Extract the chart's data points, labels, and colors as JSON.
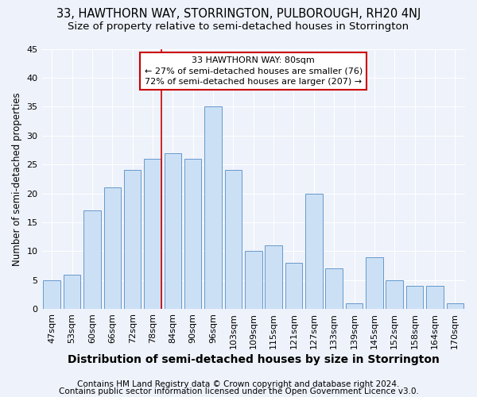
{
  "title": "33, HAWTHORN WAY, STORRINGTON, PULBOROUGH, RH20 4NJ",
  "subtitle": "Size of property relative to semi-detached houses in Storrington",
  "xlabel": "Distribution of semi-detached houses by size in Storrington",
  "ylabel": "Number of semi-detached properties",
  "categories": [
    "47sqm",
    "53sqm",
    "60sqm",
    "66sqm",
    "72sqm",
    "78sqm",
    "84sqm",
    "90sqm",
    "96sqm",
    "103sqm",
    "109sqm",
    "115sqm",
    "121sqm",
    "127sqm",
    "133sqm",
    "139sqm",
    "145sqm",
    "152sqm",
    "158sqm",
    "164sqm",
    "170sqm"
  ],
  "values": [
    5,
    6,
    17,
    21,
    24,
    26,
    27,
    26,
    35,
    24,
    10,
    11,
    8,
    20,
    7,
    1,
    9,
    5,
    4,
    4,
    1
  ],
  "bar_color": "#cce0f5",
  "bar_edge_color": "#6699cc",
  "ylim": [
    0,
    45
  ],
  "yticks": [
    0,
    5,
    10,
    15,
    20,
    25,
    30,
    35,
    40,
    45
  ],
  "vline_color": "#cc0000",
  "annotation_text": "33 HAWTHORN WAY: 80sqm\n← 27% of semi-detached houses are smaller (76)\n72% of semi-detached houses are larger (207) →",
  "annotation_box_color": "white",
  "annotation_box_edge": "#cc0000",
  "footer1": "Contains HM Land Registry data © Crown copyright and database right 2024.",
  "footer2": "Contains public sector information licensed under the Open Government Licence v3.0.",
  "bg_color": "#eef2fa",
  "grid_color": "#ffffff",
  "title_fontsize": 10.5,
  "subtitle_fontsize": 9.5,
  "xlabel_fontsize": 10,
  "ylabel_fontsize": 8.5,
  "tick_fontsize": 8,
  "annotation_fontsize": 8,
  "footer_fontsize": 7.5,
  "vline_idx": 5
}
